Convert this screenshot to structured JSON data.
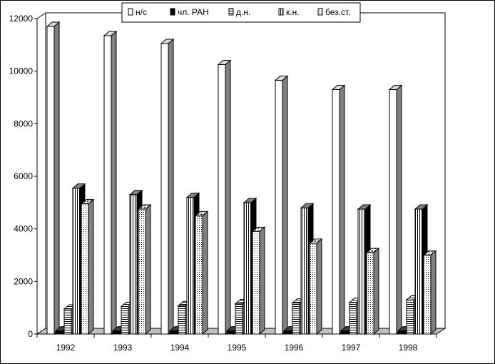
{
  "chart_data": {
    "type": "bar",
    "style": "3d-clustered-column",
    "categories": [
      "1992",
      "1993",
      "1994",
      "1995",
      "1996",
      "1997",
      "1998"
    ],
    "series": [
      {
        "name": "н/с",
        "pattern": "white",
        "values": [
          11700,
          11350,
          11050,
          10250,
          9650,
          9300,
          9300
        ]
      },
      {
        "name": "чл. РАН",
        "pattern": "black",
        "values": [
          120,
          120,
          120,
          120,
          120,
          120,
          120
        ]
      },
      {
        "name": "д.н.",
        "pattern": "hlines",
        "values": [
          950,
          1050,
          1080,
          1150,
          1180,
          1200,
          1300
        ]
      },
      {
        "name": "к.н.",
        "pattern": "vlines",
        "values": [
          5550,
          5300,
          5200,
          5000,
          4800,
          4750,
          4750
        ]
      },
      {
        "name": "без.ст.",
        "pattern": "dots",
        "values": [
          4950,
          4750,
          4500,
          3900,
          3450,
          3100,
          3000
        ]
      }
    ],
    "ylim": [
      0,
      12000
    ],
    "yticks": [
      "0",
      "2000",
      "4000",
      "6000",
      "8000",
      "10000",
      "12000"
    ],
    "title": "",
    "xlabel": "",
    "ylabel": "",
    "legend_position": "top-center",
    "grid": false,
    "colors": {
      "outline": "#000000",
      "face": "#ffffff",
      "side": "#808080",
      "top": "#c0c0c0"
    }
  }
}
